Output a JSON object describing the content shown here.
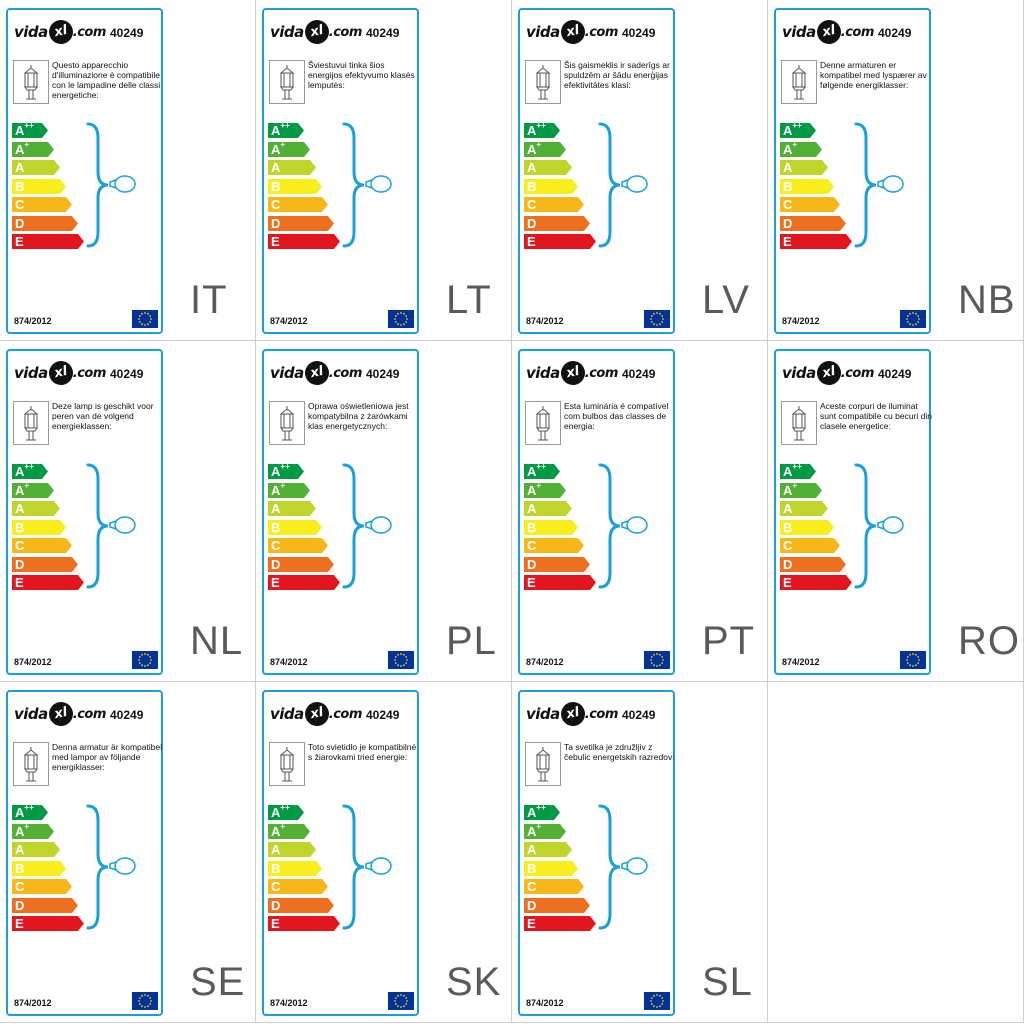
{
  "brand": {
    "vida": "vida",
    "xl": "xl",
    "com": ".com"
  },
  "product_code": "40249",
  "regulation": "874/2012",
  "classes": [
    "A++",
    "A+",
    "A",
    "B",
    "C",
    "D",
    "E"
  ],
  "class_colors": [
    "#009a44",
    "#52b135",
    "#bfd52c",
    "#f8ee1c",
    "#f8b719",
    "#ed6f20",
    "#e3151f"
  ],
  "labels": [
    {
      "lang": "IT",
      "text": "Questo apparecchio d'illuminazione è compatibile con le lampadine delle classi energetiche:"
    },
    {
      "lang": "LT",
      "text": "Šviestuvui tinka šios energijos efektyvumo klasės lemputės:"
    },
    {
      "lang": "LV",
      "text": "Šis gaismeklis ir saderīgs ar spuldzēm ar šādu enerģijas efektivitātes klasi:"
    },
    {
      "lang": "NB",
      "text": "Denne armaturen er kompatibel med lyspærer av følgende energiklasser:"
    },
    {
      "lang": "NL",
      "text": "Deze lamp is geschikt voor peren van de volgend energieklassen:"
    },
    {
      "lang": "PL",
      "text": "Oprawa oświetleniowa jest kompatybilna z żarówkami klas energetycznych:"
    },
    {
      "lang": "PT",
      "text": "Esta luminária é compatível com bulbos das classes de energia:"
    },
    {
      "lang": "RO",
      "text": "Aceste corpuri de iluminat sunt compatibile cu becuri din clasele energetice:"
    },
    {
      "lang": "SE",
      "text": "Denna armatur är kompatibel med lampor av följande energiklasser:"
    },
    {
      "lang": "SK",
      "text": "Toto svietidlo je kompatibilné s žiarovkami tried energie:"
    },
    {
      "lang": "SL",
      "text": "Ta svetilka je združljiv z čebulic energetskih razredov:"
    }
  ]
}
